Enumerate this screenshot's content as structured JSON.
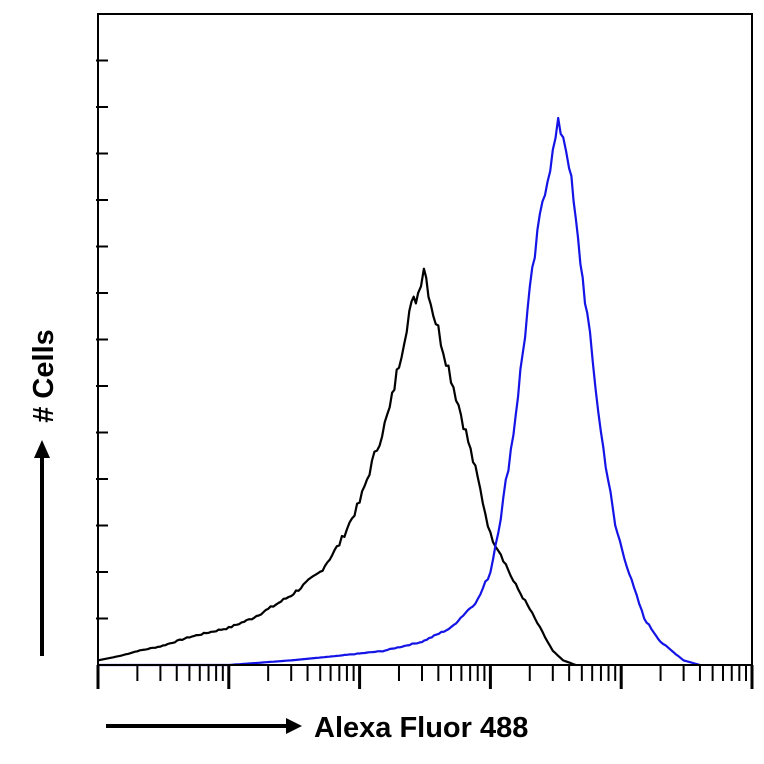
{
  "chart_data": {
    "type": "line",
    "title": "",
    "xlabel": "Alexa Fluor 488",
    "ylabel": "# Cells",
    "x_scale": "log",
    "xlim": [
      1,
      100000
    ],
    "ylim": [
      0,
      140
    ],
    "grid": false,
    "colors": {
      "control": "#000000",
      "sample": "#1414e6"
    },
    "series": [
      {
        "color": "#000000",
        "x": [
          1,
          1.5,
          2,
          3,
          5,
          7,
          10,
          15,
          20,
          30,
          50,
          70,
          100,
          130,
          170,
          200,
          240,
          280,
          310,
          350,
          400,
          500,
          650,
          800,
          1000,
          1200,
          1500,
          2000,
          2500,
          3000,
          3600,
          4500
        ],
        "values": [
          1,
          2,
          3,
          4,
          6,
          7,
          8,
          10,
          12,
          15,
          20,
          26,
          35,
          45,
          55,
          65,
          76,
          80,
          86,
          78,
          72,
          62,
          50,
          40,
          28,
          24,
          18,
          12,
          7,
          3,
          1,
          0
        ]
      },
      {
        "color": "#1414e6",
        "x": [
          1,
          10,
          30,
          70,
          150,
          300,
          500,
          800,
          1000,
          1200,
          1500,
          2000,
          2500,
          3000,
          3300,
          3600,
          4000,
          4500,
          5500,
          7000,
          9000,
          12000,
          15000,
          20000,
          30000,
          40000
        ],
        "values": [
          0,
          0,
          1,
          2,
          3,
          5,
          8,
          14,
          20,
          32,
          50,
          80,
          100,
          110,
          116,
          114,
          108,
          95,
          75,
          50,
          30,
          18,
          10,
          5,
          1,
          0
        ]
      }
    ]
  }
}
